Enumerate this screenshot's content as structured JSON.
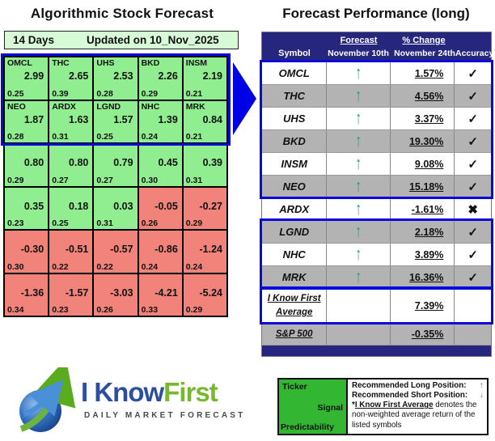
{
  "left_panel": {
    "title": "Algorithmic Stock Forecast",
    "banner": {
      "period": "14 Days",
      "updated": "Updated on 10_Nov_2025"
    },
    "grid_rows": [
      {
        "highlight": true,
        "cells": [
          {
            "ticker": "OMCL",
            "signal": "2.99",
            "pred": "0.25",
            "tone": "green"
          },
          {
            "ticker": "THC",
            "signal": "2.65",
            "pred": "0.39",
            "tone": "green"
          },
          {
            "ticker": "UHS",
            "signal": "2.53",
            "pred": "0.28",
            "tone": "green"
          },
          {
            "ticker": "BKD",
            "signal": "2.26",
            "pred": "0.29",
            "tone": "green"
          },
          {
            "ticker": "INSM",
            "signal": "2.19",
            "pred": "0.21",
            "tone": "green"
          }
        ]
      },
      {
        "highlight": true,
        "cells": [
          {
            "ticker": "NEO",
            "signal": "1.87",
            "pred": "0.28",
            "tone": "green"
          },
          {
            "ticker": "ARDX",
            "signal": "1.63",
            "pred": "0.31",
            "tone": "green"
          },
          {
            "ticker": "LGND",
            "signal": "1.57",
            "pred": "0.25",
            "tone": "green"
          },
          {
            "ticker": "NHC",
            "signal": "1.39",
            "pred": "0.24",
            "tone": "green"
          },
          {
            "ticker": "MRK",
            "signal": "0.84",
            "pred": "0.21",
            "tone": "green"
          }
        ]
      },
      {
        "highlight": false,
        "cells": [
          {
            "ticker": "",
            "signal": "0.80",
            "pred": "0.29",
            "tone": "green"
          },
          {
            "ticker": "",
            "signal": "0.80",
            "pred": "0.27",
            "tone": "green"
          },
          {
            "ticker": "",
            "signal": "0.79",
            "pred": "0.27",
            "tone": "green"
          },
          {
            "ticker": "",
            "signal": "0.45",
            "pred": "0.30",
            "tone": "green"
          },
          {
            "ticker": "",
            "signal": "0.39",
            "pred": "0.31",
            "tone": "green"
          }
        ]
      },
      {
        "highlight": false,
        "cells": [
          {
            "ticker": "",
            "signal": "0.35",
            "pred": "0.23",
            "tone": "green"
          },
          {
            "ticker": "",
            "signal": "0.18",
            "pred": "0.25",
            "tone": "green"
          },
          {
            "ticker": "",
            "signal": "0.03",
            "pred": "0.31",
            "tone": "green"
          },
          {
            "ticker": "",
            "signal": "-0.05",
            "pred": "0.26",
            "tone": "red"
          },
          {
            "ticker": "",
            "signal": "-0.27",
            "pred": "0.29",
            "tone": "red"
          }
        ]
      },
      {
        "highlight": false,
        "cells": [
          {
            "ticker": "",
            "signal": "-0.30",
            "pred": "0.30",
            "tone": "red"
          },
          {
            "ticker": "",
            "signal": "-0.51",
            "pred": "0.22",
            "tone": "red"
          },
          {
            "ticker": "",
            "signal": "-0.57",
            "pred": "0.22",
            "tone": "red"
          },
          {
            "ticker": "",
            "signal": "-0.86",
            "pred": "0.24",
            "tone": "red"
          },
          {
            "ticker": "",
            "signal": "-1.24",
            "pred": "0.24",
            "tone": "red"
          }
        ]
      },
      {
        "highlight": false,
        "cells": [
          {
            "ticker": "",
            "signal": "-1.36",
            "pred": "0.34",
            "tone": "red"
          },
          {
            "ticker": "",
            "signal": "-1.57",
            "pred": "0.23",
            "tone": "red"
          },
          {
            "ticker": "",
            "signal": "-3.03",
            "pred": "0.26",
            "tone": "red"
          },
          {
            "ticker": "",
            "signal": "-4.21",
            "pred": "0.33",
            "tone": "red"
          },
          {
            "ticker": "",
            "signal": "-5.24",
            "pred": "0.29",
            "tone": "red"
          }
        ]
      }
    ]
  },
  "right_panel": {
    "title": "Forecast Performance (long)",
    "header": {
      "symbol": "Symbol",
      "forecast_top": "Forecast",
      "forecast_sub": "November 10th",
      "change_top": "% Change",
      "change_sub": "November 24th",
      "accuracy": "Accuracy"
    },
    "rows": [
      {
        "symbol": "OMCL",
        "direction": "up",
        "change": "1.57%",
        "accuracy": "correct",
        "shade": "white"
      },
      {
        "symbol": "THC",
        "direction": "up",
        "change": "4.56%",
        "accuracy": "correct",
        "shade": "gray"
      },
      {
        "symbol": "UHS",
        "direction": "up",
        "change": "3.37%",
        "accuracy": "correct",
        "shade": "white"
      },
      {
        "symbol": "BKD",
        "direction": "up",
        "change": "19.30%",
        "accuracy": "correct",
        "shade": "gray"
      },
      {
        "symbol": "INSM",
        "direction": "up",
        "change": "9.08%",
        "accuracy": "correct",
        "shade": "white"
      },
      {
        "symbol": "NEO",
        "direction": "up",
        "change": "15.18%",
        "accuracy": "correct",
        "shade": "gray"
      },
      {
        "symbol": "ARDX",
        "direction": "up",
        "change": "-1.61%",
        "accuracy": "incorrect",
        "shade": "white"
      },
      {
        "symbol": "LGND",
        "direction": "up",
        "change": "2.18%",
        "accuracy": "correct",
        "shade": "gray"
      },
      {
        "symbol": "NHC",
        "direction": "up",
        "change": "3.89%",
        "accuracy": "correct",
        "shade": "white"
      },
      {
        "symbol": "MRK",
        "direction": "up",
        "change": "16.36%",
        "accuracy": "correct",
        "shade": "gray"
      }
    ],
    "summary": {
      "avg_label_line1": "I Know First",
      "avg_label_line2": "Average",
      "avg_change": "7.39%",
      "sp_label": "S&P 500",
      "sp_change": "-0.35%"
    }
  },
  "logo": {
    "brand_blue_text": "I Know",
    "brand_green_text": "First",
    "tagline": "DAILY MARKET FORECAST"
  },
  "legend": {
    "ticker": "Ticker",
    "signal": "Signal",
    "predictability": "Predictability",
    "long_label": "Recommended Long Position:",
    "short_label": "Recommended Short Position:",
    "note_star": "*",
    "note_underline": "I Know First Average",
    "note_tail": " denotes the non-weighted average return of the listed symbols"
  },
  "icons": {
    "up_arrow": "↑",
    "down_arrow": "↓",
    "correct": "✓",
    "incorrect": "✖"
  },
  "colors": {
    "navy_header": "#26267e",
    "highlight_blue": "#0a0ad8",
    "cell_green": "#90ee90",
    "cell_red": "#f2837b",
    "banner_green": "#d7fbd7",
    "row_gray": "#b3b3b3",
    "arrow_green": "#17a566",
    "arrow_red": "#e03c31",
    "legend_green": "#33b733",
    "brand_blue": "#2b4ea2",
    "brand_green": "#76b82f"
  },
  "chart_data": [
    {
      "type": "table",
      "title": "Algorithmic Stock Forecast",
      "subtitle": "14 Days — Updated on 10_Nov_2025",
      "columns": [
        "ticker",
        "signal",
        "predictability"
      ],
      "labeled_rows": [
        [
          "OMCL",
          2.99,
          0.25
        ],
        [
          "THC",
          2.65,
          0.39
        ],
        [
          "UHS",
          2.53,
          0.28
        ],
        [
          "BKD",
          2.26,
          0.29
        ],
        [
          "INSM",
          2.19,
          0.21
        ],
        [
          "NEO",
          1.87,
          0.28
        ],
        [
          "ARDX",
          1.63,
          0.31
        ],
        [
          "LGND",
          1.57,
          0.25
        ],
        [
          "NHC",
          1.39,
          0.24
        ],
        [
          "MRK",
          0.84,
          0.21
        ]
      ],
      "unlabeled_rows": [
        [
          0.8,
          0.29
        ],
        [
          0.8,
          0.27
        ],
        [
          0.79,
          0.27
        ],
        [
          0.45,
          0.3
        ],
        [
          0.39,
          0.31
        ],
        [
          0.35,
          0.23
        ],
        [
          0.18,
          0.25
        ],
        [
          0.03,
          0.31
        ],
        [
          -0.05,
          0.26
        ],
        [
          -0.27,
          0.29
        ],
        [
          -0.3,
          0.3
        ],
        [
          -0.51,
          0.22
        ],
        [
          -0.57,
          0.22
        ],
        [
          -0.86,
          0.24
        ],
        [
          -1.24,
          0.24
        ],
        [
          -1.36,
          0.34
        ],
        [
          -1.57,
          0.23
        ],
        [
          -3.03,
          0.26
        ],
        [
          -4.21,
          0.33
        ],
        [
          -5.24,
          0.29
        ]
      ]
    },
    {
      "type": "table",
      "title": "Forecast Performance (long)",
      "columns": [
        "Symbol",
        "Forecast November 10th",
        "% Change November 24th",
        "Accuracy"
      ],
      "rows": [
        [
          "OMCL",
          "up",
          1.57,
          "correct"
        ],
        [
          "THC",
          "up",
          4.56,
          "correct"
        ],
        [
          "UHS",
          "up",
          3.37,
          "correct"
        ],
        [
          "BKD",
          "up",
          19.3,
          "correct"
        ],
        [
          "INSM",
          "up",
          9.08,
          "correct"
        ],
        [
          "NEO",
          "up",
          15.18,
          "correct"
        ],
        [
          "ARDX",
          "up",
          -1.61,
          "incorrect"
        ],
        [
          "LGND",
          "up",
          2.18,
          "correct"
        ],
        [
          "NHC",
          "up",
          3.89,
          "correct"
        ],
        [
          "MRK",
          "up",
          16.36,
          "correct"
        ],
        [
          "I Know First Average",
          "",
          7.39,
          ""
        ],
        [
          "S&P 500",
          "",
          -0.35,
          ""
        ]
      ]
    }
  ]
}
